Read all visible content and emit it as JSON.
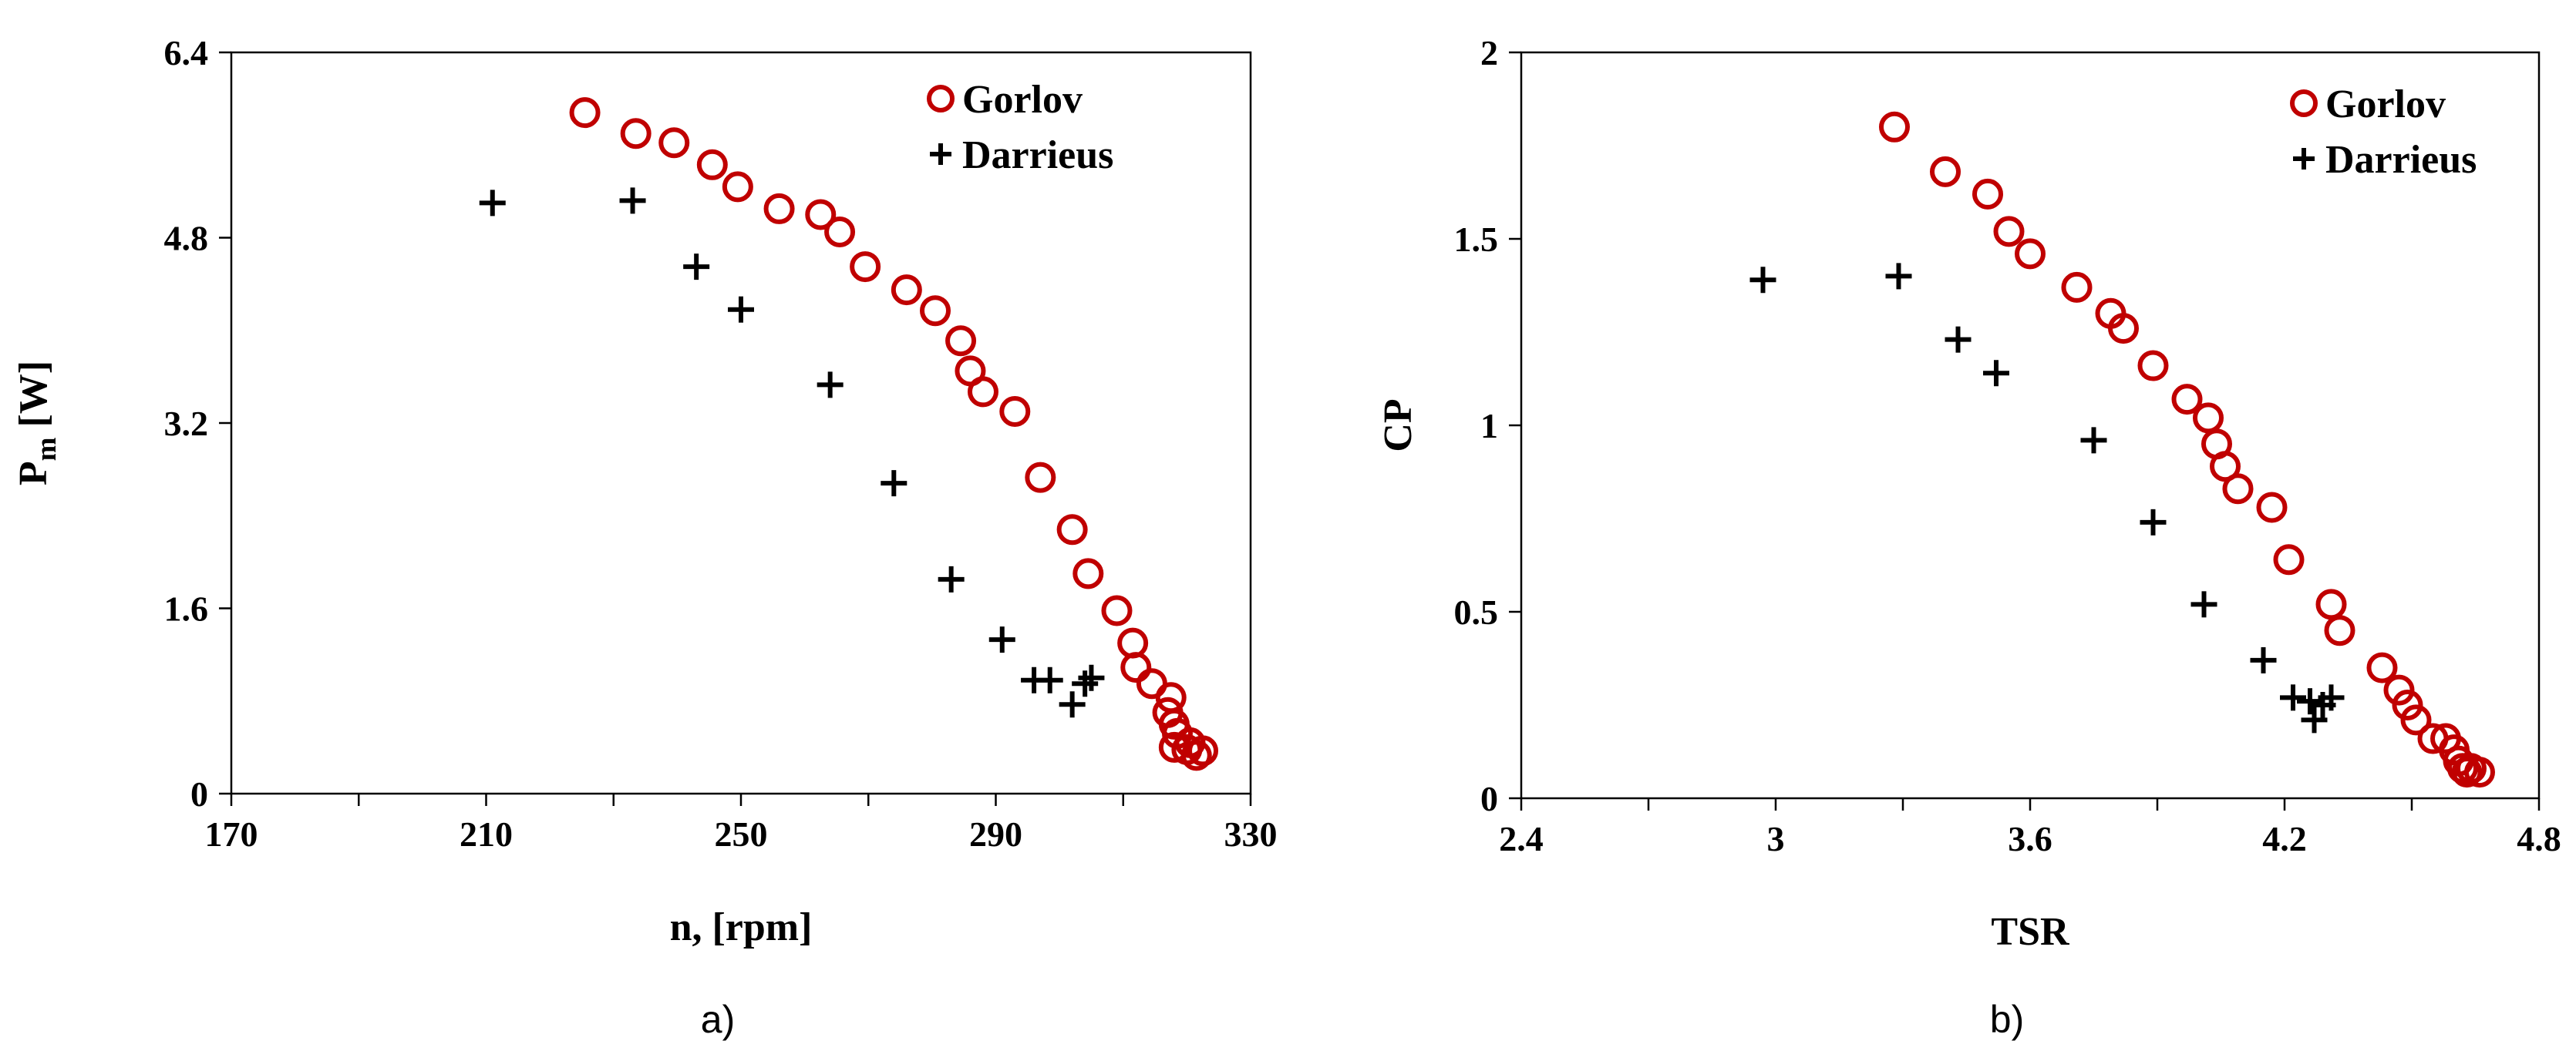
{
  "chart_data": [
    {
      "type": "scatter",
      "panel_label": "a)",
      "xlabel": "n, [rpm]",
      "ylabel_main": "P",
      "ylabel_sub": "m",
      "ylabel_rest": " [W]",
      "xlim": [
        170,
        330
      ],
      "ylim": [
        0,
        6.4
      ],
      "xticks": [
        170,
        210,
        250,
        290,
        330
      ],
      "yticks": [
        0,
        1.6,
        3.2,
        4.8,
        6.4
      ],
      "x_minor_step": 20,
      "ytick_labels": [
        "0",
        "1.6",
        "3.2",
        "4.8",
        "6.4"
      ],
      "legend_position": "top-right",
      "series": [
        {
          "name": "Gorlov",
          "marker": "circle",
          "color": "#c00000",
          "points": [
            [
              225.5,
              5.88
            ],
            [
              233.5,
              5.7
            ],
            [
              239.5,
              5.62
            ],
            [
              245.5,
              5.43
            ],
            [
              249.5,
              5.24
            ],
            [
              256.0,
              5.05
            ],
            [
              262.5,
              5.0
            ],
            [
              265.5,
              4.85
            ],
            [
              269.5,
              4.55
            ],
            [
              276.0,
              4.35
            ],
            [
              280.5,
              4.17
            ],
            [
              284.5,
              3.91
            ],
            [
              286.0,
              3.65
            ],
            [
              288.0,
              3.47
            ],
            [
              293.0,
              3.3
            ],
            [
              297.0,
              2.73
            ],
            [
              302.0,
              2.28
            ],
            [
              304.5,
              1.9
            ],
            [
              309.0,
              1.58
            ],
            [
              311.5,
              1.3
            ],
            [
              312.0,
              1.09
            ],
            [
              314.5,
              0.95
            ],
            [
              317.5,
              0.83
            ],
            [
              317.0,
              0.7
            ],
            [
              318.0,
              0.6
            ],
            [
              318.5,
              0.52
            ],
            [
              320.5,
              0.44
            ],
            [
              318.0,
              0.4
            ],
            [
              320.0,
              0.38
            ],
            [
              322.5,
              0.37
            ],
            [
              321.5,
              0.33
            ]
          ]
        },
        {
          "name": "Darrieus",
          "marker": "plus",
          "color": "#000000",
          "points": [
            [
              211.0,
              5.1
            ],
            [
              233.0,
              5.12
            ],
            [
              243.0,
              4.55
            ],
            [
              250.0,
              4.18
            ],
            [
              264.0,
              3.53
            ],
            [
              274.0,
              2.68
            ],
            [
              283.0,
              1.85
            ],
            [
              291.0,
              1.33
            ],
            [
              296.0,
              0.98
            ],
            [
              298.5,
              0.98
            ],
            [
              302.0,
              0.77
            ],
            [
              304.0,
              0.95
            ],
            [
              305.0,
              1.0
            ]
          ]
        }
      ]
    },
    {
      "type": "scatter",
      "panel_label": "b)",
      "xlabel": "TSR",
      "ylabel": "CP",
      "xlim": [
        2.4,
        4.8
      ],
      "ylim": [
        0,
        2
      ],
      "xticks": [
        2.4,
        3.0,
        3.6,
        4.2,
        4.8
      ],
      "yticks": [
        0,
        0.5,
        1,
        1.5,
        2
      ],
      "x_minor_step": 0.3,
      "xtick_labels": [
        "2.4",
        "3",
        "3.6",
        "4.2",
        "4.8"
      ],
      "ytick_labels": [
        "0",
        "0.5",
        "1",
        "1.5",
        "2"
      ],
      "legend_position": "top-right",
      "series": [
        {
          "name": "Gorlov",
          "marker": "circle",
          "color": "#c00000",
          "points": [
            [
              3.28,
              1.8
            ],
            [
              3.4,
              1.68
            ],
            [
              3.5,
              1.62
            ],
            [
              3.55,
              1.52
            ],
            [
              3.6,
              1.46
            ],
            [
              3.71,
              1.37
            ],
            [
              3.79,
              1.3
            ],
            [
              3.82,
              1.26
            ],
            [
              3.89,
              1.16
            ],
            [
              3.97,
              1.07
            ],
            [
              4.02,
              1.02
            ],
            [
              4.04,
              0.95
            ],
            [
              4.06,
              0.89
            ],
            [
              4.09,
              0.83
            ],
            [
              4.17,
              0.78
            ],
            [
              4.21,
              0.64
            ],
            [
              4.31,
              0.52
            ],
            [
              4.33,
              0.45
            ],
            [
              4.43,
              0.35
            ],
            [
              4.47,
              0.29
            ],
            [
              4.49,
              0.25
            ],
            [
              4.51,
              0.21
            ],
            [
              4.55,
              0.16
            ],
            [
              4.58,
              0.16
            ],
            [
              4.6,
              0.13
            ],
            [
              4.61,
              0.1
            ],
            [
              4.62,
              0.08
            ],
            [
              4.63,
              0.07
            ],
            [
              4.64,
              0.08
            ],
            [
              4.66,
              0.07
            ]
          ]
        },
        {
          "name": "Darrieus",
          "marker": "plus",
          "color": "#000000",
          "points": [
            [
              2.97,
              1.39
            ],
            [
              3.29,
              1.4
            ],
            [
              3.43,
              1.23
            ],
            [
              3.52,
              1.14
            ],
            [
              3.75,
              0.96
            ],
            [
              3.89,
              0.74
            ],
            [
              4.01,
              0.52
            ],
            [
              4.15,
              0.37
            ],
            [
              4.22,
              0.27
            ],
            [
              4.26,
              0.26
            ],
            [
              4.27,
              0.21
            ],
            [
              4.29,
              0.25
            ],
            [
              4.31,
              0.27
            ]
          ]
        }
      ]
    }
  ]
}
